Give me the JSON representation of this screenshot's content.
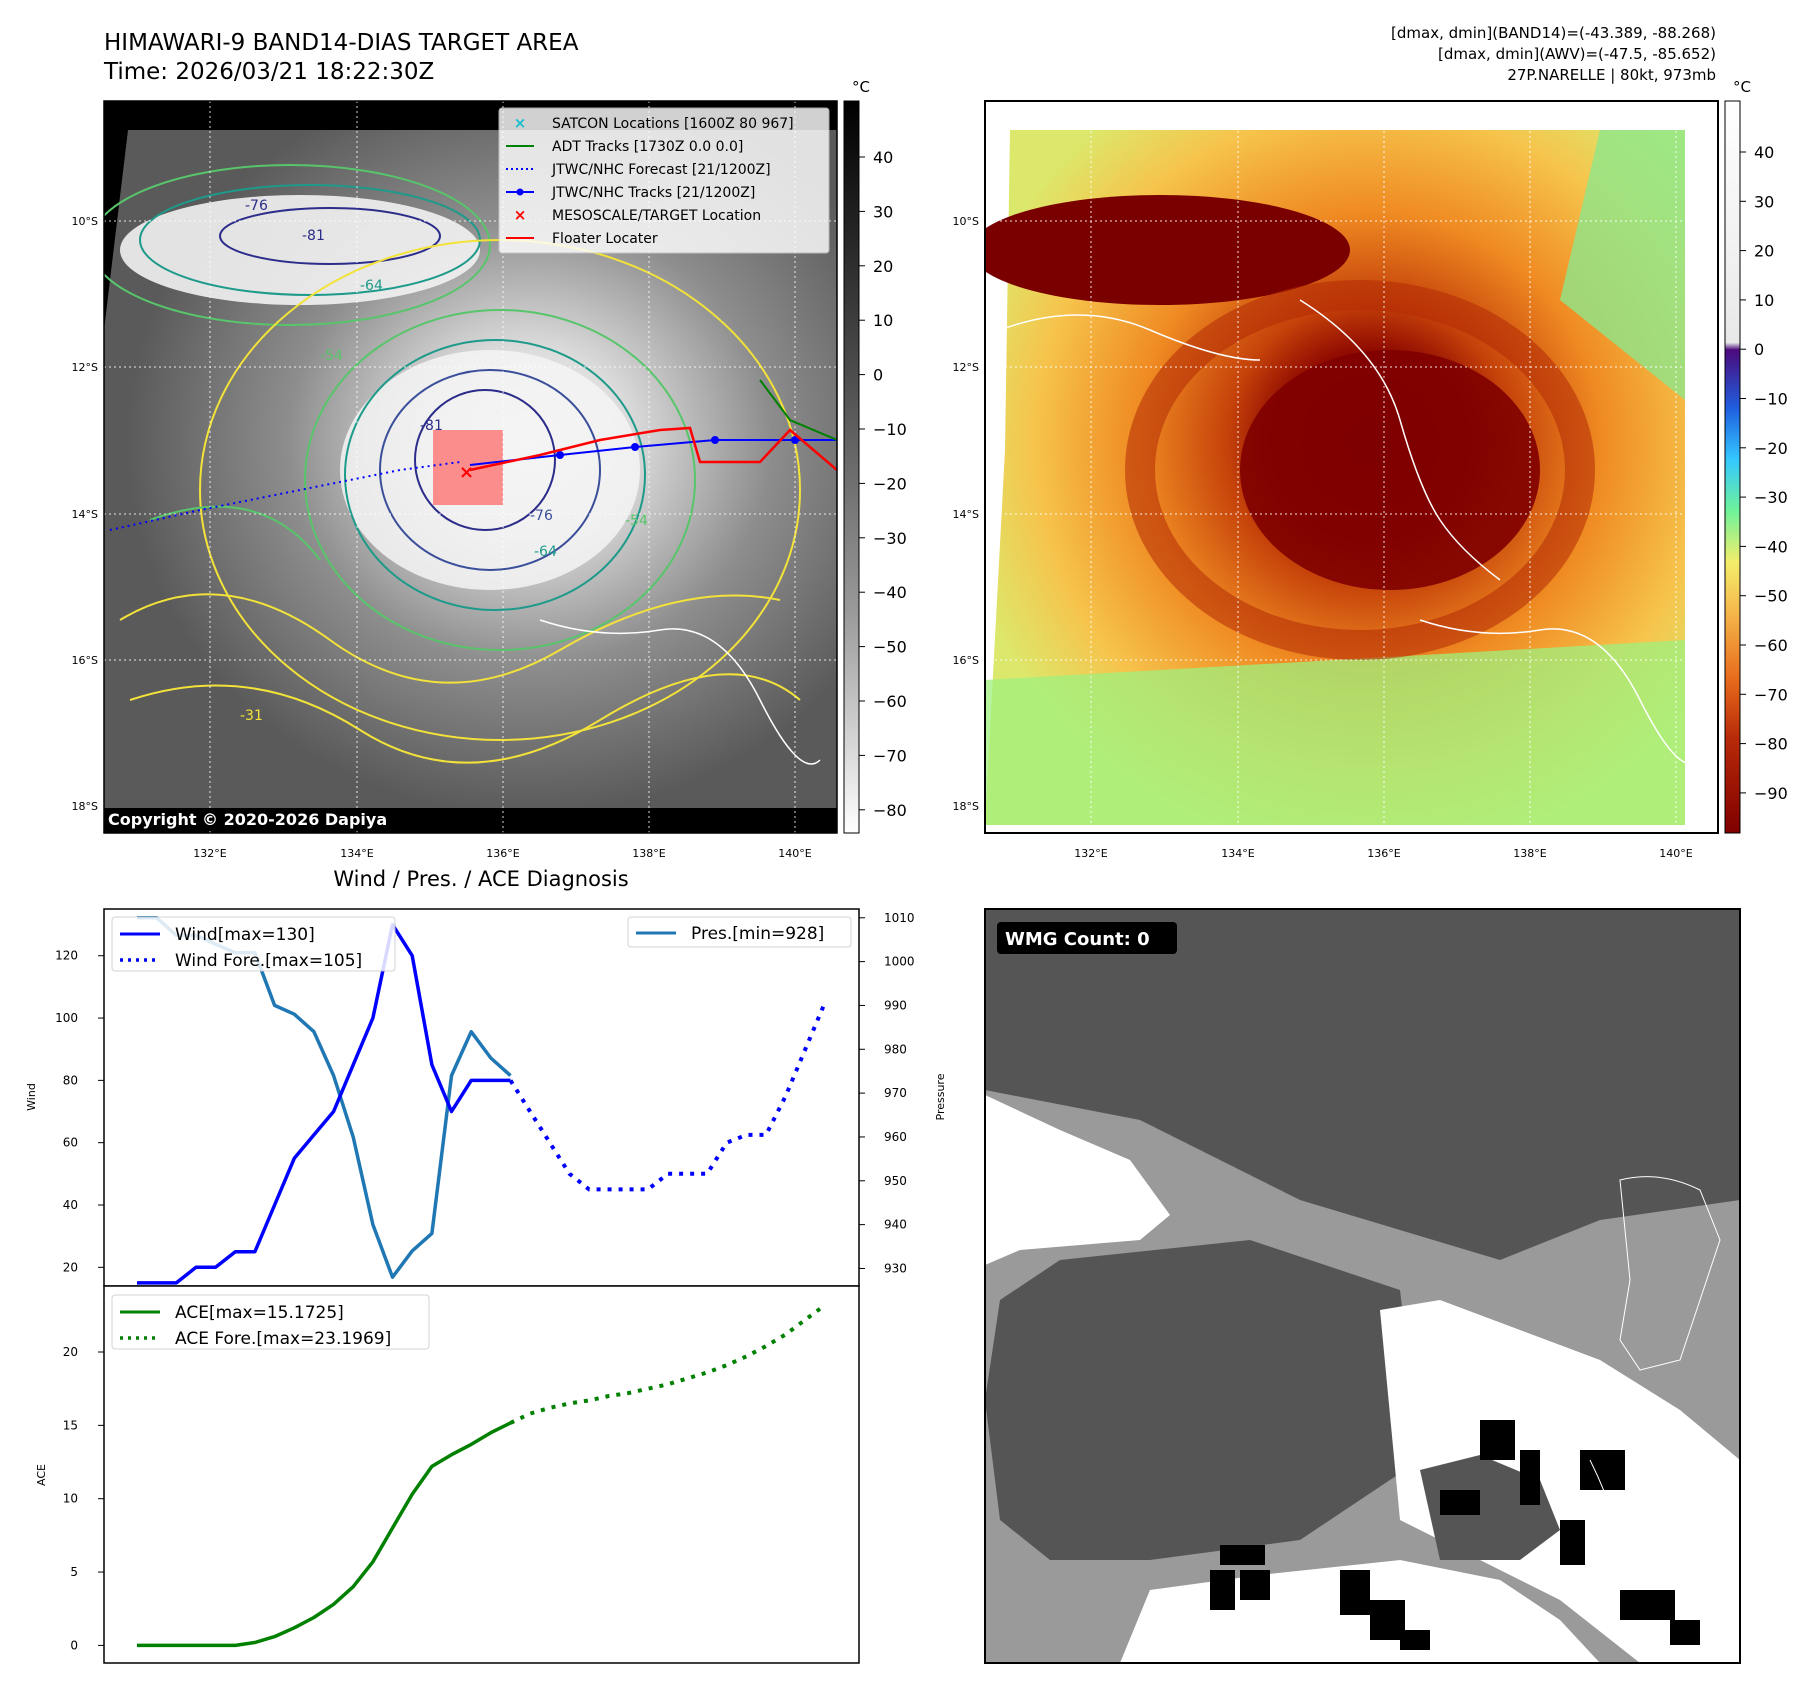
{
  "header": {
    "title": "HIMAWARI-9 BAND14-DIAS TARGET AREA",
    "time": "Time: 2026/03/21 18:22:30Z",
    "stats_band14": "[dmax, dmin](BAND14)=(-43.389, -88.268)",
    "stats_awv": "[dmax, dmin](AWV)=(-47.5, -85.652)",
    "storm": "27P.NARELLE | 80kt, 973mb"
  },
  "maps": {
    "lat_ticks": [
      "10°S",
      "12°S",
      "14°S",
      "16°S",
      "18°S"
    ],
    "lon_ticks": [
      "132°E",
      "134°E",
      "136°E",
      "138°E",
      "140°E"
    ],
    "copyright": "Copyright © 2020-2026 Dapiya",
    "contour_labels": [
      "-76",
      "-81",
      "-64",
      "-54",
      "-31",
      "-81",
      "-76",
      "-64",
      "-54"
    ],
    "legend": [
      {
        "label": "SATCON Locations [1600Z 80 967]",
        "color": "#17becf"
      },
      {
        "label": "ADT Tracks [1730Z 0.0 0.0]",
        "color": "#008000"
      },
      {
        "label": "JTWC/NHC Forecast [21/1200Z]",
        "color": "#0000ff"
      },
      {
        "label": "JTWC/NHC Tracks [21/1200Z]",
        "color": "#0000ff"
      },
      {
        "label": "MESOSCALE/TARGET Location",
        "color": "#ff0000"
      },
      {
        "label": "Floater Locater",
        "color": "#ff0000"
      }
    ],
    "cbar_left": {
      "unit": "°C",
      "ticks": [
        "40",
        "30",
        "20",
        "10",
        "0",
        "−10",
        "−20",
        "−30",
        "−40",
        "−50",
        "−60",
        "−70",
        "−80"
      ]
    },
    "cbar_right": {
      "unit": "°C",
      "ticks": [
        "40",
        "30",
        "20",
        "10",
        "0",
        "−10",
        "−20",
        "−30",
        "−40",
        "−50",
        "−60",
        "−70",
        "−80",
        "−90"
      ]
    }
  },
  "diagnosis": {
    "title": "Wind / Pres. / ACE Diagnosis",
    "wind_ylabel": "Wind",
    "pres_ylabel": "Pressure",
    "ace_ylabel": "ACE",
    "legend_wind": "Wind[max=130]",
    "legend_wind_fore": "Wind Fore.[max=105]",
    "legend_pres": "Pres.[min=928]",
    "legend_ace": "ACE[max=15.1725]",
    "legend_ace_fore": "ACE Fore.[max=23.1969]"
  },
  "wmg": {
    "badge": "WMG Count: 0"
  },
  "chart_data": [
    {
      "type": "line",
      "title": "Wind / Pres. / ACE Diagnosis",
      "ylabel": "Wind",
      "ylim": [
        14,
        135
      ],
      "yticks": [
        20,
        40,
        60,
        80,
        100,
        120
      ],
      "series": [
        {
          "name": "Wind[max=130]",
          "color": "#0000ff",
          "style": "solid",
          "x": [
            0,
            1,
            2,
            3,
            4,
            5,
            6,
            7,
            8,
            9,
            10,
            11,
            12,
            13,
            14,
            15,
            16,
            17,
            18,
            19
          ],
          "values": [
            15,
            15,
            15,
            20,
            20,
            25,
            25,
            40,
            55,
            62.5,
            70,
            85,
            100,
            130,
            120,
            85,
            70,
            80,
            80,
            80
          ]
        },
        {
          "name": "Wind Fore.[max=105]",
          "color": "#0000ff",
          "style": "dotted",
          "x": [
            19,
            20,
            21,
            22,
            23,
            24,
            25,
            26,
            27,
            28,
            29,
            30,
            31,
            32,
            33,
            34,
            35
          ],
          "values": [
            80,
            70,
            60,
            50,
            45,
            45,
            45,
            45,
            50,
            50,
            50,
            60,
            62.5,
            62.5,
            75,
            90,
            105
          ]
        }
      ]
    },
    {
      "type": "line",
      "ylabel": "Pressure",
      "ylim": [
        926,
        1012
      ],
      "yticks": [
        930,
        940,
        950,
        960,
        970,
        980,
        990,
        1000,
        1010
      ],
      "series": [
        {
          "name": "Pres.[min=928]",
          "color": "#1f77b4",
          "style": "solid",
          "x": [
            0,
            1,
            2,
            3,
            4,
            5,
            6,
            7,
            8,
            9,
            10,
            11,
            12,
            13,
            14,
            15,
            16,
            17,
            18,
            19
          ],
          "values": [
            1010,
            1010,
            1006,
            1006,
            1004,
            1002,
            1002,
            990,
            988,
            984,
            974,
            960,
            940,
            928,
            934,
            938,
            974,
            984,
            978,
            974
          ]
        }
      ]
    },
    {
      "type": "line",
      "ylabel": "ACE",
      "ylim": [
        -1.2,
        24.5
      ],
      "yticks": [
        0,
        5,
        10,
        15,
        20
      ],
      "series": [
        {
          "name": "ACE[max=15.1725]",
          "color": "#008000",
          "style": "solid",
          "x": [
            0,
            1,
            2,
            3,
            4,
            5,
            6,
            7,
            8,
            9,
            10,
            11,
            12,
            13,
            14,
            15,
            16,
            17,
            18,
            19
          ],
          "values": [
            0,
            0,
            0,
            0,
            0,
            0,
            0.2,
            0.6,
            1.2,
            1.9,
            2.8,
            4.0,
            5.7,
            8.0,
            10.3,
            12.2,
            13.0,
            13.7,
            14.5,
            15.17
          ]
        },
        {
          "name": "ACE Fore.[max=23.1969]",
          "color": "#008000",
          "style": "dotted",
          "x": [
            19,
            20,
            21,
            22,
            23,
            24,
            25,
            26,
            27,
            28,
            29,
            30,
            31,
            32,
            33,
            34,
            35
          ],
          "values": [
            15.17,
            15.8,
            16.2,
            16.5,
            16.7,
            17.0,
            17.2,
            17.5,
            17.8,
            18.2,
            18.6,
            19.1,
            19.7,
            20.4,
            21.2,
            22.2,
            23.2
          ]
        }
      ]
    }
  ]
}
